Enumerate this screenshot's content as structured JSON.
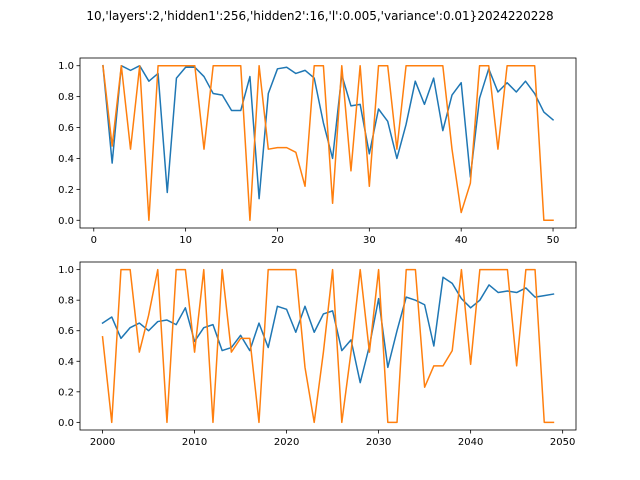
{
  "title": "10,'layers':2,'hidden1':256,'hidden2':16,'l':0.005,'variance':0.01}2024220228",
  "colors": {
    "series_blue": "#1f77b4",
    "series_orange": "#ff7f0e",
    "axis": "#000000",
    "background": "#ffffff"
  },
  "chart_data": [
    {
      "type": "line",
      "grid": false,
      "xlim": [
        -1.5,
        52.5
      ],
      "ylim": [
        -0.05,
        1.05
      ],
      "xticks": [
        0,
        10,
        20,
        30,
        40,
        50
      ],
      "yticks": [
        0.0,
        0.2,
        0.4,
        0.6,
        0.8,
        1.0
      ],
      "xtick_labels": [
        "0",
        "10",
        "20",
        "30",
        "40",
        "50"
      ],
      "ytick_labels": [
        "0.0",
        "0.2",
        "0.4",
        "0.6",
        "0.8",
        "1.0"
      ],
      "x": [
        1,
        2,
        3,
        4,
        5,
        6,
        7,
        8,
        9,
        10,
        11,
        12,
        13,
        14,
        15,
        16,
        17,
        18,
        19,
        20,
        21,
        22,
        23,
        24,
        25,
        26,
        27,
        28,
        29,
        30,
        31,
        32,
        33,
        34,
        35,
        36,
        37,
        38,
        39,
        40,
        41,
        42,
        43,
        44,
        45,
        46,
        47,
        48,
        49,
        50
      ],
      "series": [
        {
          "color": "#1f77b4",
          "values": [
            1.0,
            0.37,
            1.0,
            0.97,
            1.0,
            0.9,
            0.95,
            0.18,
            0.92,
            0.99,
            0.99,
            0.93,
            0.82,
            0.81,
            0.71,
            0.71,
            0.93,
            0.14,
            0.82,
            0.98,
            0.99,
            0.95,
            0.97,
            0.92,
            0.63,
            0.4,
            0.94,
            0.74,
            0.75,
            0.43,
            0.72,
            0.64,
            0.4,
            0.62,
            0.9,
            0.75,
            0.92,
            0.58,
            0.81,
            0.89,
            0.28,
            0.79,
            0.98,
            0.83,
            0.89,
            0.83,
            0.9,
            0.82,
            0.7,
            0.65
          ]
        },
        {
          "color": "#ff7f0e",
          "values": [
            1.0,
            0.48,
            1.0,
            0.46,
            1.0,
            0.0,
            1.0,
            1.0,
            1.0,
            1.0,
            1.0,
            0.46,
            1.0,
            1.0,
            1.0,
            1.0,
            0.0,
            1.0,
            0.46,
            0.47,
            0.47,
            0.44,
            0.22,
            1.0,
            1.0,
            0.11,
            1.0,
            0.32,
            1.0,
            0.22,
            1.0,
            1.0,
            0.46,
            1.0,
            1.0,
            1.0,
            1.0,
            1.0,
            0.46,
            0.05,
            0.24,
            1.0,
            1.0,
            0.46,
            1.0,
            1.0,
            1.0,
            1.0,
            0.0,
            0.0
          ]
        }
      ]
    },
    {
      "type": "line",
      "grid": false,
      "xlim": [
        1997.55,
        2051.45
      ],
      "ylim": [
        -0.05,
        1.05
      ],
      "xticks": [
        2000,
        2010,
        2020,
        2030,
        2040,
        2050
      ],
      "yticks": [
        0.0,
        0.2,
        0.4,
        0.6,
        0.8,
        1.0
      ],
      "xtick_labels": [
        "2000",
        "2010",
        "2020",
        "2030",
        "2040",
        "2050"
      ],
      "ytick_labels": [
        "0.0",
        "0.2",
        "0.4",
        "0.6",
        "0.8",
        "1.0"
      ],
      "x": [
        2000,
        2001,
        2002,
        2003,
        2004,
        2005,
        2006,
        2007,
        2008,
        2009,
        2010,
        2011,
        2012,
        2013,
        2014,
        2015,
        2016,
        2017,
        2018,
        2019,
        2020,
        2021,
        2022,
        2023,
        2024,
        2025,
        2026,
        2027,
        2028,
        2029,
        2030,
        2031,
        2032,
        2033,
        2034,
        2035,
        2036,
        2037,
        2038,
        2039,
        2040,
        2041,
        2042,
        2043,
        2044,
        2045,
        2046,
        2047,
        2048,
        2049
      ],
      "series": [
        {
          "color": "#1f77b4",
          "values": [
            0.65,
            0.69,
            0.55,
            0.62,
            0.65,
            0.6,
            0.66,
            0.67,
            0.64,
            0.75,
            0.53,
            0.62,
            0.64,
            0.47,
            0.49,
            0.57,
            0.47,
            0.65,
            0.49,
            0.76,
            0.74,
            0.59,
            0.76,
            0.59,
            0.71,
            0.73,
            0.47,
            0.54,
            0.26,
            0.5,
            0.81,
            0.36,
            0.6,
            0.82,
            0.8,
            0.77,
            0.5,
            0.95,
            0.91,
            0.81,
            0.75,
            0.8,
            0.9,
            0.85,
            0.86,
            0.85,
            0.88,
            0.82,
            0.83,
            0.84
          ]
        },
        {
          "color": "#ff7f0e",
          "values": [
            0.56,
            0.0,
            1.0,
            1.0,
            0.46,
            0.7,
            1.0,
            0.0,
            1.0,
            1.0,
            0.46,
            1.0,
            0.0,
            1.0,
            0.46,
            0.55,
            0.55,
            0.0,
            1.0,
            1.0,
            1.0,
            1.0,
            0.36,
            0.0,
            0.46,
            1.0,
            0.0,
            0.46,
            1.0,
            0.46,
            1.0,
            0.0,
            0.0,
            1.0,
            1.0,
            0.23,
            0.37,
            0.37,
            0.47,
            1.0,
            0.38,
            1.0,
            1.0,
            1.0,
            1.0,
            0.37,
            1.0,
            1.0,
            0.0,
            0.0
          ]
        }
      ]
    }
  ]
}
